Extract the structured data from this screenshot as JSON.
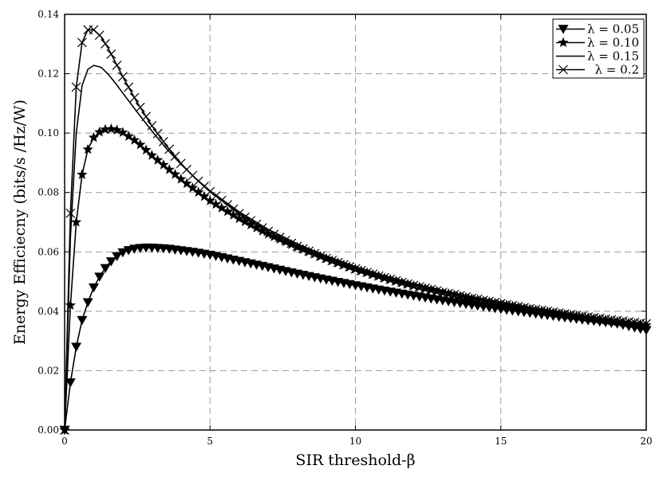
{
  "chart_data": {
    "type": "line",
    "title": "",
    "xlabel": "SIR threshold-β",
    "ylabel": "Energy Efficiecny (bits/s /Hz/W)",
    "xlim": [
      0,
      20
    ],
    "ylim": [
      0,
      0.14
    ],
    "x_ticks": [
      0,
      5,
      10,
      15,
      20
    ],
    "y_ticks": [
      0.0,
      0.02,
      0.04,
      0.06,
      0.08,
      0.1,
      0.12,
      0.14
    ],
    "y_tick_labels": [
      "0.00",
      "0.02",
      "0.04",
      "0.06",
      "0.08",
      "0.10",
      "0.12",
      "0.14"
    ],
    "x_tick_labels": [
      "0",
      "5",
      "10",
      "15",
      "20"
    ],
    "grid": true,
    "legend_position": "top-right",
    "marker_step": 0.2,
    "series": [
      {
        "name": "λ = 0.05",
        "marker": "triangle-down",
        "x": [
          0,
          0.2,
          0.4,
          0.6,
          0.8,
          1.0,
          1.25,
          1.5,
          1.75,
          2.0,
          2.25,
          2.5,
          2.75,
          3.0,
          3.5,
          4.0,
          4.5,
          5.0,
          6.0,
          7.0,
          8.0,
          9.0,
          10.0,
          11.0,
          12.0,
          13.0,
          14.0,
          15.0,
          16.0,
          17.0,
          18.0,
          19.0,
          20.0
        ],
        "values": [
          0.0,
          0.016,
          0.028,
          0.037,
          0.043,
          0.048,
          0.0525,
          0.0558,
          0.0582,
          0.0598,
          0.0607,
          0.0612,
          0.0614,
          0.0614,
          0.0611,
          0.0605,
          0.0598,
          0.059,
          0.0569,
          0.0548,
          0.0526,
          0.0506,
          0.0487,
          0.0469,
          0.0452,
          0.0436,
          0.0421,
          0.0407,
          0.0394,
          0.0381,
          0.0369,
          0.0358,
          0.0336
        ]
      },
      {
        "name": "λ = 0.10",
        "marker": "star",
        "x": [
          0,
          0.2,
          0.4,
          0.6,
          0.8,
          1.0,
          1.25,
          1.5,
          1.75,
          2.0,
          2.5,
          3.0,
          3.5,
          4.0,
          4.5,
          5.0,
          6.0,
          7.0,
          8.0,
          9.0,
          10.0,
          11.0,
          12.0,
          13.0,
          14.0,
          15.0,
          16.0,
          17.0,
          18.0,
          19.0,
          20.0
        ],
        "values": [
          0.0,
          0.042,
          0.07,
          0.086,
          0.0945,
          0.0985,
          0.1008,
          0.1015,
          0.1012,
          0.1002,
          0.097,
          0.0925,
          0.0885,
          0.0845,
          0.0808,
          0.0772,
          0.0712,
          0.066,
          0.0616,
          0.0577,
          0.0542,
          0.0512,
          0.0486,
          0.0463,
          0.0442,
          0.0424,
          0.0407,
          0.0392,
          0.0378,
          0.0365,
          0.0353
        ]
      },
      {
        "name": "λ = 0.15",
        "marker": "none",
        "x": [
          0,
          0.2,
          0.4,
          0.6,
          0.8,
          1.0,
          1.25,
          1.5,
          1.75,
          2.0,
          2.5,
          3.0,
          3.5,
          4.0,
          4.5,
          5.0,
          6.0,
          7.0,
          8.0,
          9.0,
          10.0,
          11.0,
          12.0,
          13.0,
          14.0,
          15.0,
          16.0,
          17.0,
          18.0,
          19.0,
          20.0
        ],
        "values": [
          0.0,
          0.065,
          0.1,
          0.116,
          0.1215,
          0.1228,
          0.1222,
          0.1198,
          0.1168,
          0.1135,
          0.107,
          0.1007,
          0.0948,
          0.0895,
          0.0848,
          0.0806,
          0.0735,
          0.0676,
          0.0627,
          0.0586,
          0.055,
          0.0519,
          0.0492,
          0.0468,
          0.0447,
          0.0428,
          0.0411,
          0.0396,
          0.0382,
          0.0369,
          0.0357
        ]
      },
      {
        "name": "λ = 0.2",
        "marker": "x",
        "x": [
          0,
          0.2,
          0.4,
          0.6,
          0.8,
          1.0,
          1.25,
          1.5,
          1.75,
          2.0,
          2.5,
          3.0,
          3.5,
          4.0,
          4.5,
          5.0,
          6.0,
          7.0,
          8.0,
          9.0,
          10.0,
          11.0,
          12.0,
          13.0,
          14.0,
          15.0,
          16.0,
          17.0,
          18.0,
          19.0,
          20.0
        ],
        "values": [
          0.0,
          0.073,
          0.1155,
          0.1305,
          0.1348,
          0.1348,
          0.1325,
          0.1285,
          0.1238,
          0.119,
          0.1102,
          0.1025,
          0.0958,
          0.0898,
          0.0847,
          0.0803,
          0.0729,
          0.0669,
          0.0619,
          0.0578,
          0.0543,
          0.0513,
          0.0487,
          0.0464,
          0.0444,
          0.0426,
          0.0409,
          0.0394,
          0.0381,
          0.0369,
          0.0358
        ]
      }
    ]
  }
}
